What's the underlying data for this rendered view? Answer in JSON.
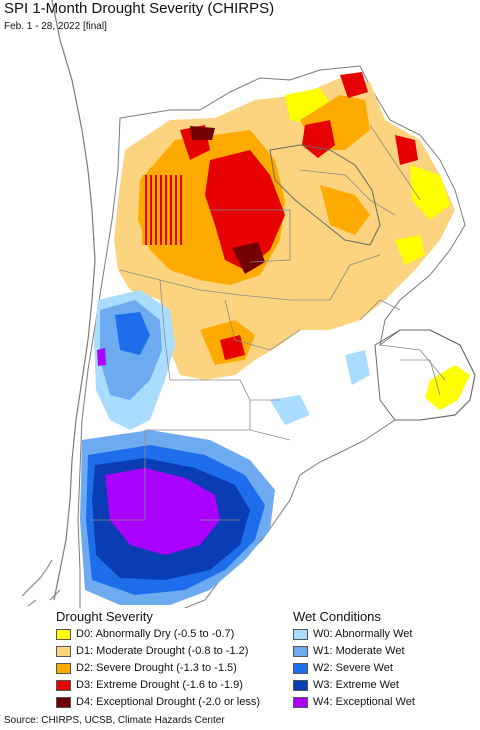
{
  "title": "SPI 1-Month Drought Severity (CHIRPS)",
  "subtitle": "Feb. 1 - 28, 2022 [final]",
  "legend": {
    "drought_heading": "Drought Severity",
    "wet_heading": "Wet Conditions",
    "drought": [
      {
        "label": "D0: Abnormally Dry (-0.5 to -0.7)",
        "color": "#ffff00"
      },
      {
        "label": "D1: Moderate Drought (-0.8 to -1.2)",
        "color": "#fcd37f"
      },
      {
        "label": "D2: Severe Drought (-1.3 to -1.5)",
        "color": "#ffaa00"
      },
      {
        "label": "D3: Extreme Drought (-1.6 to -1.9)",
        "color": "#e60000"
      },
      {
        "label": "D4: Exceptional Drought (-2.0 or less)",
        "color": "#730000"
      }
    ],
    "wet": [
      {
        "label": "W0: Abnormally Wet",
        "color": "#aadcff"
      },
      {
        "label": "W1: Moderate Wet",
        "color": "#6eaaf0"
      },
      {
        "label": "W2: Severe Wet",
        "color": "#1e6eeb"
      },
      {
        "label": "W3: Extreme Wet",
        "color": "#0a3cb4"
      },
      {
        "label": "W4: Exceptional Wet",
        "color": "#aa00ff"
      }
    ]
  },
  "source": "Source: CHIRPS, UCSB, Climate Hazards Center"
}
